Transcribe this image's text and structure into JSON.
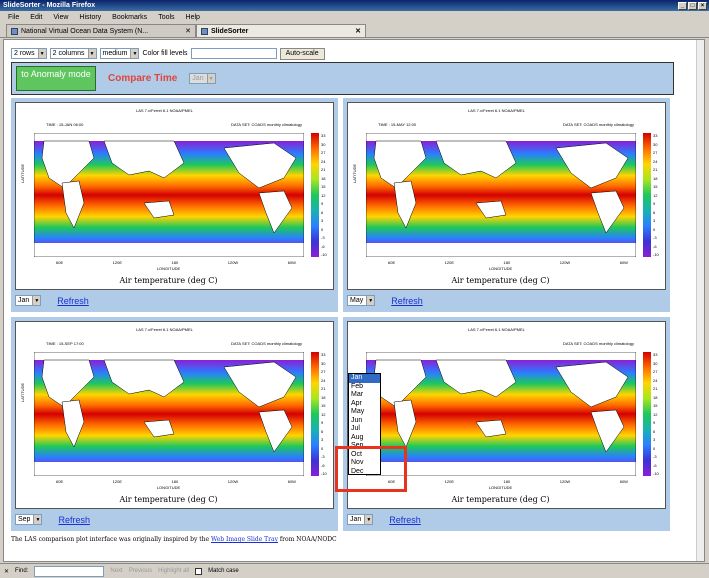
{
  "window": {
    "title": "SlideSorter - Mozilla Firefox"
  },
  "menu": [
    "File",
    "Edit",
    "View",
    "History",
    "Bookmarks",
    "Tools",
    "Help"
  ],
  "tabs": [
    {
      "label": "National Virtual Ocean Data System (N..."
    },
    {
      "label": "SlideSorter"
    }
  ],
  "controls": {
    "rows": "2 rows",
    "columns": "2 columns",
    "size": "medium",
    "color_fill_label": "Color fill levels",
    "autoscale": "Auto-scale"
  },
  "anomaly": {
    "button": "to Anomaly mode",
    "compare_time": "Compare Time",
    "compare_value": "Jan"
  },
  "plots": [
    {
      "month": "Jan",
      "time": "TIME : 15-JAN 06:00"
    },
    {
      "month": "May",
      "time": "TIME : 15-MAY 12:00"
    },
    {
      "month": "Sep",
      "time": "TIME : 15-SEP 17:00"
    },
    {
      "month": "Jan",
      "time": ""
    }
  ],
  "plot_common": {
    "header": "LAS 7.x/Ferret 6.1     NOAA/PMEL",
    "dataset": "DATA SET: COADS monthly climatology",
    "ylabel": "LATITUDE",
    "xlabel": "LONGITUDE",
    "xticks": [
      "60E",
      "120E",
      "180",
      "120W",
      "60W"
    ],
    "title": "Air temperature (deg C)",
    "cbar": [
      "33",
      "30",
      "27",
      "24",
      "21",
      "18",
      "15",
      "12",
      "9",
      "6",
      "3",
      "0",
      "-3",
      "-6",
      "-10"
    ]
  },
  "refresh": "Refresh",
  "dropdown": [
    "Jan",
    "Feb",
    "Mar",
    "Apr",
    "May",
    "Jun",
    "Jul",
    "Aug",
    "Sep",
    "Oct",
    "Nov",
    "Dec"
  ],
  "credit": {
    "before": "The LAS comparison plot interface was originally inspired by the ",
    "link": "Web Image Slide Tray",
    "after": " from NOAA/NODC"
  },
  "find": {
    "label": "Find:",
    "next": "Next",
    "previous": "Previous",
    "highlight": "Highlight all",
    "match_case": "Match case"
  }
}
